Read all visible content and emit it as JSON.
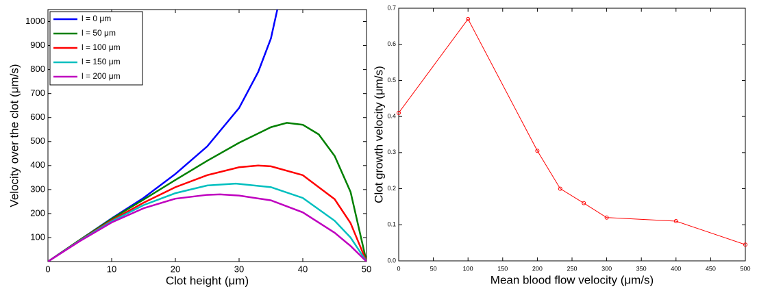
{
  "chart_data": [
    {
      "type": "line",
      "xlabel": "Clot height (μm)",
      "ylabel": "Velocity over the clot (μm/s)",
      "xlim": [
        0,
        50
      ],
      "ylim": [
        0,
        1050
      ],
      "xticks": [
        0,
        10,
        20,
        30,
        40,
        50
      ],
      "yticks": [
        100,
        200,
        300,
        400,
        500,
        600,
        700,
        800,
        900,
        1000
      ],
      "legend": "upper left",
      "series": [
        {
          "name": "l = 0 μm",
          "color": "#0000ff",
          "x": [
            0,
            5,
            10,
            15,
            20,
            25,
            30,
            33,
            35,
            36
          ],
          "values": [
            0,
            90,
            180,
            265,
            365,
            480,
            640,
            790,
            930,
            1050
          ]
        },
        {
          "name": "l = 50 μm",
          "color": "#008000",
          "x": [
            0,
            5,
            10,
            15,
            20,
            25,
            30,
            35,
            37.5,
            40,
            42.5,
            45,
            47.5,
            50
          ],
          "values": [
            0,
            90,
            178,
            258,
            340,
            420,
            495,
            560,
            578,
            570,
            530,
            440,
            290,
            0
          ]
        },
        {
          "name": "l = 100 μm",
          "color": "#ff0000",
          "x": [
            0,
            5,
            10,
            15,
            20,
            25,
            30,
            33,
            35,
            40,
            45,
            47.5,
            50
          ],
          "values": [
            0,
            88,
            172,
            245,
            310,
            360,
            393,
            400,
            397,
            360,
            260,
            160,
            0
          ]
        },
        {
          "name": "l = 150 μm",
          "color": "#00bfbf",
          "x": [
            0,
            5,
            10,
            15,
            20,
            25,
            29.5,
            35,
            40,
            45,
            47.5,
            50
          ],
          "values": [
            0,
            87,
            168,
            235,
            285,
            317,
            325,
            310,
            265,
            170,
            100,
            0
          ]
        },
        {
          "name": "l = 200 μm",
          "color": "#bf00bf",
          "x": [
            0,
            5,
            10,
            15,
            20,
            25,
            27,
            30,
            35,
            40,
            45,
            47.5,
            50
          ],
          "values": [
            0,
            85,
            163,
            222,
            262,
            278,
            280,
            275,
            255,
            205,
            120,
            65,
            0
          ]
        }
      ]
    },
    {
      "type": "line",
      "xlabel": "Mean blood flow velocity (μm/s)",
      "ylabel": "Clot growth velocity (μm/s)",
      "xlim": [
        0,
        500
      ],
      "ylim": [
        0,
        0.7
      ],
      "xticks": [
        0,
        50,
        100,
        150,
        200,
        250,
        300,
        350,
        400,
        450,
        500
      ],
      "yticks": [
        {
          "value": 0,
          "label": "0.0"
        },
        0.1,
        0.2,
        0.3,
        0.4,
        0.5,
        0.6,
        0.7
      ],
      "marker": "circle",
      "series": [
        {
          "color": "#ff0000",
          "x": [
            0,
            100,
            200,
            233,
            267,
            300,
            400,
            500
          ],
          "values": [
            0.41,
            0.67,
            0.305,
            0.2,
            0.16,
            0.12,
            0.11,
            0.045
          ]
        }
      ]
    }
  ]
}
